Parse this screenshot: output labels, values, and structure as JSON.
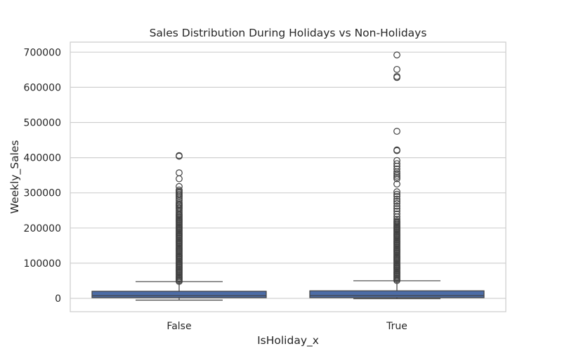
{
  "chart_data": {
    "type": "box",
    "title": "Sales Distribution During Holidays vs Non-Holidays",
    "xlabel": "IsHoliday_x",
    "ylabel": "Weekly_Sales",
    "categories": [
      "False",
      "True"
    ],
    "ylim": [
      -38000,
      730000
    ],
    "yticks": [
      0,
      100000,
      200000,
      300000,
      400000,
      500000,
      600000,
      700000
    ],
    "ytick_labels": [
      "0",
      "100000",
      "200000",
      "300000",
      "400000",
      "500000",
      "600000",
      "700000"
    ],
    "grid": true,
    "box_color": "#4c6ca6",
    "boxes": [
      {
        "category": "False",
        "whisker_low": -5000,
        "q1": 2000,
        "median": 7600,
        "q3": 20200,
        "whisker_high": 47500,
        "outlier_band": [
          48000,
          240000
        ],
        "outliers": [
          245000,
          250000,
          255000,
          258000,
          262000,
          265000,
          268000,
          272000,
          278000,
          283000,
          288000,
          292000,
          296000,
          300000,
          304000,
          308000,
          318000,
          340000,
          357000,
          404000,
          406000
        ]
      },
      {
        "category": "True",
        "whisker_low": -1000,
        "q1": 2000,
        "median": 7900,
        "q3": 21500,
        "whisker_high": 50000,
        "outlier_band": [
          50500,
          220000
        ],
        "outliers": [
          225000,
          232000,
          240000,
          248000,
          255000,
          262000,
          270000,
          276000,
          282000,
          290000,
          296000,
          303000,
          325000,
          340000,
          345000,
          350000,
          355000,
          360000,
          368000,
          376000,
          383000,
          392000,
          420000,
          422000,
          475000,
          628000,
          631000,
          651000,
          692000
        ]
      }
    ]
  }
}
